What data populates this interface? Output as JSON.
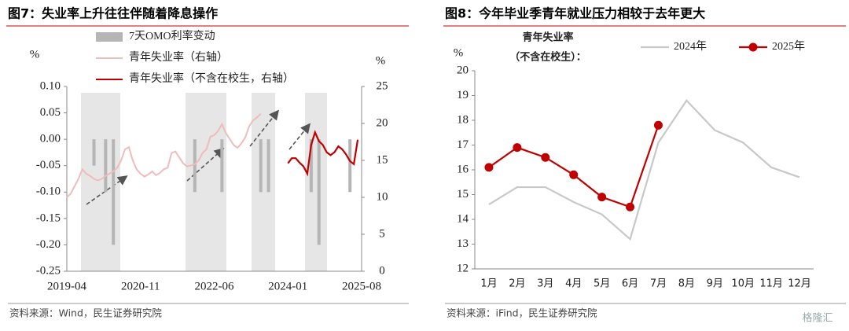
{
  "chart_data": [
    {
      "type": "combo",
      "title": "图7：失业率上升往往伴随着降息操作",
      "ylabel": "%",
      "y2label": "%",
      "source": "资料来源：Wind，民生证券研究院",
      "x": [
        "2019-04",
        "2019-05",
        "2019-06",
        "2019-07",
        "2019-08",
        "2019-09",
        "2019-10",
        "2019-11",
        "2019-12",
        "2020-01",
        "2020-02",
        "2020-03",
        "2020-04",
        "2020-05",
        "2020-06",
        "2020-07",
        "2020-08",
        "2020-09",
        "2020-10",
        "2020-11",
        "2020-12",
        "2021-01",
        "2021-02",
        "2021-03",
        "2021-04",
        "2021-05",
        "2021-06",
        "2021-07",
        "2021-08",
        "2021-09",
        "2021-10",
        "2021-11",
        "2021-12",
        "2022-01",
        "2022-02",
        "2022-03",
        "2022-04",
        "2022-05",
        "2022-06",
        "2022-07",
        "2022-08",
        "2022-09",
        "2022-10",
        "2022-11",
        "2022-12",
        "2023-01",
        "2023-02",
        "2023-03",
        "2023-04",
        "2023-05",
        "2023-06",
        "2023-07",
        "2023-08",
        "2023-09",
        "2023-10",
        "2023-11",
        "2023-12",
        "2024-01",
        "2024-02",
        "2024-03",
        "2024-04",
        "2024-05",
        "2024-06",
        "2024-07",
        "2024-08",
        "2024-09",
        "2024-10",
        "2024-11",
        "2024-12",
        "2025-01",
        "2025-02",
        "2025-03",
        "2025-04",
        "2025-05",
        "2025-06",
        "2025-07",
        "2025-08"
      ],
      "xticks": [
        "2019-04",
        "2020-11",
        "2022-06",
        "2024-01",
        "2025-08"
      ],
      "ylim": [
        -0.25,
        0.1
      ],
      "yticks": [
        {
          "value": -0.25,
          "label": "-0.25"
        },
        {
          "value": -0.2,
          "label": "-0.20"
        },
        -0.15,
        {
          "value": -0.1,
          "label": "-0.10"
        },
        -0.05,
        {
          "value": 0,
          "label": "0.00"
        },
        0.05,
        {
          "value": 0.1,
          "label": "0.10"
        }
      ],
      "y2lim": [
        0,
        25
      ],
      "y2ticks": [
        0,
        5,
        10,
        15,
        20,
        25
      ],
      "series": [
        {
          "name": "7天OMO利率变动",
          "type": "bar",
          "color": "#b5b5b5",
          "values": [
            null,
            null,
            null,
            null,
            null,
            null,
            null,
            -0.05,
            null,
            null,
            -0.1,
            null,
            -0.2,
            null,
            null,
            null,
            null,
            null,
            null,
            null,
            null,
            null,
            null,
            null,
            null,
            null,
            null,
            null,
            null,
            null,
            null,
            null,
            null,
            -0.1,
            null,
            null,
            null,
            null,
            null,
            null,
            -0.1,
            null,
            null,
            null,
            null,
            null,
            null,
            null,
            null,
            null,
            -0.1,
            null,
            -0.1,
            null,
            null,
            null,
            null,
            null,
            null,
            null,
            null,
            null,
            null,
            -0.1,
            null,
            -0.2,
            null,
            null,
            null,
            null,
            null,
            null,
            null,
            -0.1,
            null,
            null,
            null
          ]
        },
        {
          "name": "青年失业率（右轴）",
          "type": "line",
          "axis": "y2",
          "color": "#eebcbc",
          "values": [
            10.0,
            10.5,
            11.5,
            12.5,
            13.8,
            13.2,
            12.9,
            12.5,
            12.3,
            12.5,
            12.9,
            13.2,
            13.5,
            14.0,
            15.0,
            16.5,
            16.8,
            15.0,
            13.8,
            13.2,
            12.8,
            13.1,
            13.5,
            13.0,
            13.3,
            13.8,
            14.0,
            16.0,
            16.2,
            15.4,
            14.6,
            14.2,
            14.3,
            14.5,
            15.0,
            16.0,
            16.5,
            18.2,
            18.4,
            19.0,
            19.9,
            18.7,
            17.9,
            17.1,
            16.7,
            17.3,
            18.1,
            19.6,
            20.4,
            20.8,
            21.3,
            null,
            null,
            null,
            null,
            null,
            null,
            null,
            null,
            null,
            null,
            null,
            null,
            null,
            null,
            null,
            null,
            null,
            null,
            null,
            null,
            null,
            null,
            null,
            null,
            null,
            null
          ]
        },
        {
          "name": "青年失业率（不含在校生，右轴）",
          "type": "line",
          "axis": "y2",
          "color": "#c00000",
          "values": [
            null,
            null,
            null,
            null,
            null,
            null,
            null,
            null,
            null,
            null,
            null,
            null,
            null,
            null,
            null,
            null,
            null,
            null,
            null,
            null,
            null,
            null,
            null,
            null,
            null,
            null,
            null,
            null,
            null,
            null,
            null,
            null,
            null,
            null,
            null,
            null,
            null,
            null,
            null,
            null,
            null,
            null,
            null,
            null,
            null,
            null,
            null,
            null,
            null,
            null,
            null,
            null,
            null,
            null,
            null,
            null,
            null,
            14.6,
            15.3,
            15.3,
            14.7,
            14.2,
            13.2,
            17.1,
            18.8,
            17.6,
            17.1,
            16.1,
            15.7,
            16.1,
            16.9,
            16.5,
            15.8,
            14.9,
            14.5,
            17.8,
            null
          ]
        }
      ]
    },
    {
      "type": "line",
      "title": "图8：今年毕业季青年就业压力相较于去年更大",
      "ylabel": "%",
      "legend_title": [
        "青年失业率",
        "（不含在校生）："
      ],
      "source": "资料来源：iFind，民生证券研究院",
      "watermark": "格隆汇",
      "categories": [
        "1月",
        "2月",
        "3月",
        "4月",
        "5月",
        "6月",
        "7月",
        "8月",
        "9月",
        "10月",
        "11月",
        "12月"
      ],
      "ylim": [
        12,
        20
      ],
      "yticks": [
        12,
        13,
        14,
        15,
        16,
        17,
        18,
        19,
        20
      ],
      "series": [
        {
          "name": "2024年",
          "color": "#c8c8c8",
          "markers": false,
          "values": [
            14.6,
            15.3,
            15.3,
            14.7,
            14.2,
            13.2,
            17.1,
            18.8,
            17.6,
            17.1,
            16.1,
            15.7
          ]
        },
        {
          "name": "2025年",
          "color": "#c00000",
          "markers": true,
          "values": [
            16.1,
            16.9,
            16.5,
            15.8,
            14.9,
            14.5,
            17.8,
            null,
            null,
            null,
            null,
            null
          ]
        }
      ]
    }
  ]
}
